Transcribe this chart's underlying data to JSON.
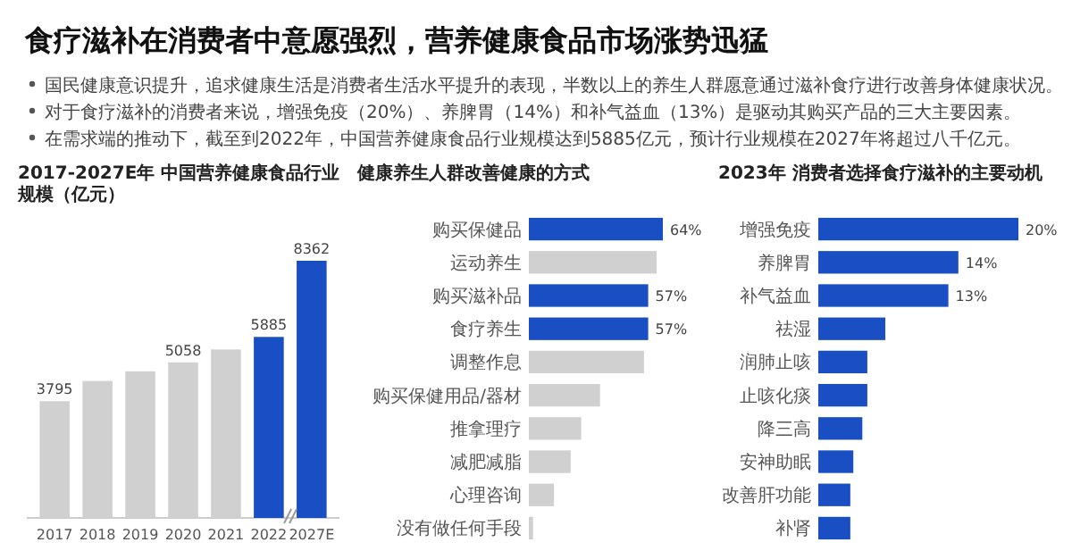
{
  "chart_data": [
    {
      "type": "other",
      "title": "食疗滋补在消费者中意愿强烈，营养健康食品市场涨势迅猛",
      "annotations": [
        "国民健康意识提升，追求健康生活是消费者生活水平提升的表现，半数以上的养生人群愿意通过滋补食疗进行改善身体健康状况。",
        "对于食疗滋补的消费者来说，增强免疫（20%）、养脾胃（14%）和补气益血（13%）是驱动其购买产品的三大主要因素。",
        "在需求端的推动下，截至到2022年，中国营养健康食品行业规模达到5885亿元，预计行业规模在2027年将超过八千亿元。"
      ]
    },
    {
      "type": "bar",
      "title": "2017-2027E年 中国营养健康食品行业规模（亿元）",
      "categories": [
        "2017",
        "2018",
        "2019",
        "2020",
        "2021",
        "2022",
        "2027E"
      ],
      "values": [
        3795,
        4454,
        4768,
        5058,
        5478,
        5885,
        8362
      ],
      "colors": [
        "#d0d0d0",
        "#d0d0d0",
        "#d0d0d0",
        "#d0d0d0",
        "#d0d0d0",
        "#1a4fc4",
        "#1a4fc4"
      ],
      "value_labels": [
        "3795",
        null,
        null,
        "5058",
        null,
        "5885",
        "8362"
      ]
    },
    {
      "type": "bar",
      "orientation": "horizontal",
      "title": "健康养生人群改善健康的方式",
      "categories": [
        "购买保健品",
        "运动养生",
        "购买滋补品",
        "食疗养生",
        "调整作息",
        "购买保健用品/器材",
        "推拿理疗",
        "减肥减脂",
        "心理咨询",
        "没有做任何手段"
      ],
      "values": [
        64,
        61,
        57,
        57,
        55,
        34,
        25,
        20,
        12,
        2
      ],
      "colors": [
        "#1a4fc4",
        "#d0d0d0",
        "#1a4fc4",
        "#1a4fc4",
        "#d0d0d0",
        "#d0d0d0",
        "#d0d0d0",
        "#d0d0d0",
        "#d0d0d0",
        "#d0d0d0"
      ],
      "value_labels": [
        "64%",
        null,
        "57%",
        "57%",
        null,
        null,
        null,
        null,
        null,
        null
      ]
    },
    {
      "type": "bar",
      "orientation": "horizontal",
      "title": "2023年 消费者选择食疗滋补的主要动机",
      "categories": [
        "增强免疫",
        "养脾胃",
        "补气益血",
        "祛湿",
        "润肺止咳",
        "止咳化痰",
        "降三高",
        "安神助眠",
        "改善肝功能",
        "补肾"
      ],
      "values": [
        20,
        14,
        13,
        6.7,
        4.9,
        4.9,
        4.4,
        3.5,
        3.2,
        3.2
      ],
      "color": "#1a4fc4",
      "value_labels": [
        "20%",
        "14%",
        "13%",
        null,
        null,
        null,
        null,
        null,
        null,
        null
      ]
    }
  ]
}
